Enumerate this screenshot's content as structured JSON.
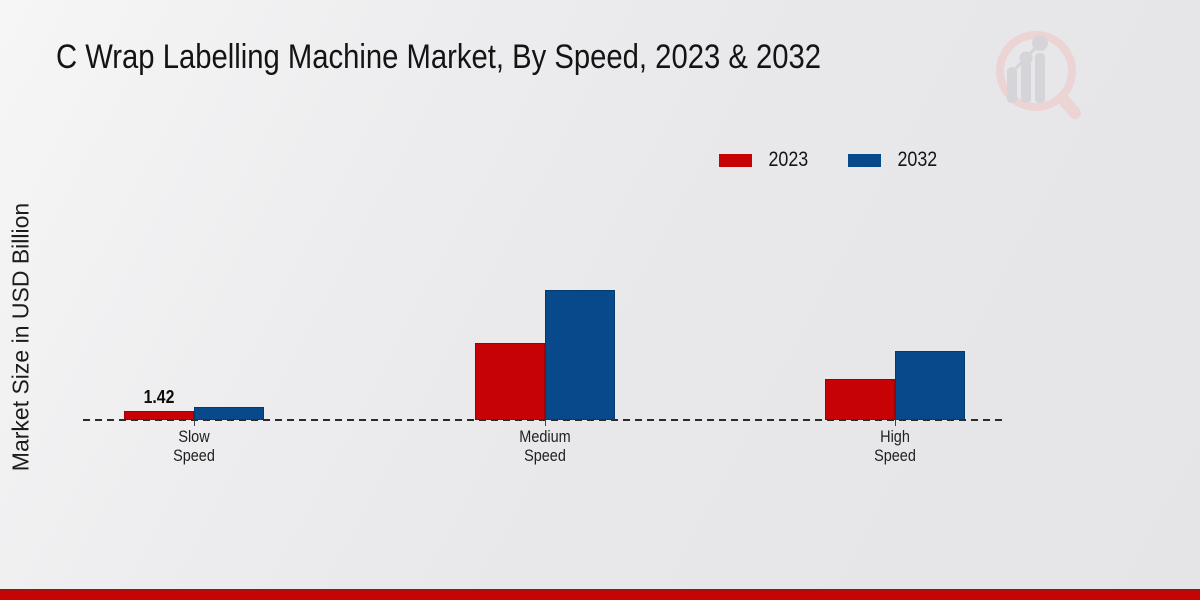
{
  "title": "C Wrap Labelling Machine Market, By Speed, 2023 & 2032",
  "ylabel": "Market Size in USD Billion",
  "legend": {
    "items": [
      {
        "label": "2023",
        "color": "#c60204"
      },
      {
        "label": "2032",
        "color": "#07498a"
      }
    ]
  },
  "logo": {
    "name": "market-research-magnifier-logo"
  },
  "colors": {
    "series_2023": "#c60204",
    "series_2032": "#07498a",
    "baseline": "#2b2b2b",
    "bottom_band": "#c50404",
    "background": "#e9e9eb"
  },
  "chart_data": {
    "type": "bar",
    "title": "C Wrap Labelling Machine Market, By Speed, 2023 & 2032",
    "xlabel": "",
    "ylabel": "Market Size in USD Billion",
    "categories": [
      "Slow Speed",
      "Medium Speed",
      "High Speed"
    ],
    "series": [
      {
        "name": "2023",
        "color": "#c60204",
        "border": "#9e0103",
        "values": [
          1.42,
          12.3,
          6.5
        ],
        "labels": [
          "1.42",
          "",
          ""
        ]
      },
      {
        "name": "2032",
        "color": "#07498a",
        "border": "#053a6e",
        "values": [
          2.0,
          20.7,
          10.9
        ],
        "labels": [
          "",
          "",
          ""
        ]
      }
    ],
    "legend_position": "top-right",
    "grid": false,
    "baseline_style": "dashed",
    "axis_ticks_shown": false,
    "only_labeled_value": "1.42 (Slow Speed, 2023)"
  }
}
